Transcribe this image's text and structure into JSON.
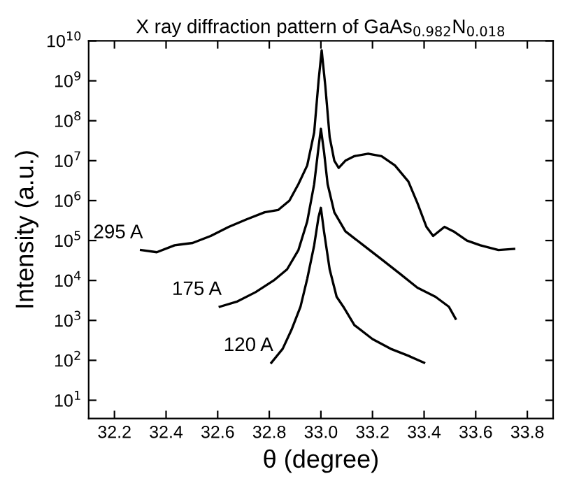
{
  "chart_data": {
    "type": "line",
    "title": "X ray diffraction pattern of GaAs$_{0.982}$N$_{0.018}$",
    "xlabel": "θ (degree)",
    "ylabel": "Intensity (a.u.)",
    "log": "y",
    "xlim": [
      32.1,
      33.9
    ],
    "ylim": [
      3.5,
      10000000000
    ],
    "xticks": [
      32.2,
      32.4,
      32.6,
      32.8,
      {
        "value": 33.0,
        "label": "33.0"
      },
      33.2,
      33.4,
      33.6,
      33.8
    ],
    "yticks": [
      {
        "value": 10,
        "label": "10$^{1}$"
      },
      {
        "value": 100,
        "label": "10$^{2}$"
      },
      {
        "value": 1000,
        "label": "10$^{3}$"
      },
      {
        "value": 10000,
        "label": "10$^{4}$"
      },
      {
        "value": 100000,
        "label": "10$^{5}$"
      },
      {
        "value": 1000000,
        "label": "10$^{6}$"
      },
      {
        "value": 10000000,
        "label": "10$^{7}$"
      },
      {
        "value": 100000000,
        "label": "10$^{8}$"
      },
      {
        "value": 1000000000,
        "label": "10$^{9}$"
      },
      {
        "value": 10000000000,
        "label": "10$^{10}$"
      }
    ],
    "grid": false,
    "legend": false,
    "marker": "none",
    "line_style": "solid",
    "series": [
      {
        "name": "295 A",
        "color": "#000000",
        "x": [
          32.303,
          32.364,
          32.433,
          32.503,
          32.573,
          32.643,
          32.712,
          32.782,
          32.834,
          32.878,
          32.913,
          32.947,
          32.974,
          32.991,
          33.003,
          33.017,
          33.034,
          33.052,
          33.069,
          33.095,
          33.13,
          33.183,
          33.235,
          33.287,
          33.339,
          33.374,
          33.409,
          33.435,
          33.479,
          33.514,
          33.566,
          33.618,
          33.688,
          33.749
        ],
        "values": [
          58000,
          51000,
          76000,
          87000,
          130000,
          220000,
          340000,
          510000,
          580000,
          1000000,
          2600000,
          7600000,
          51000000,
          1000000000,
          5800000000,
          760000000,
          39000000,
          10000000,
          6600000,
          10000000,
          13000000,
          15000000,
          13000000,
          7600000,
          3000000,
          870000,
          220000,
          130000,
          220000,
          170000,
          100000,
          76000,
          58000,
          62000
        ]
      },
      {
        "name": "175 A",
        "color": "#000000",
        "x": [
          32.608,
          32.677,
          32.747,
          32.817,
          32.869,
          32.913,
          32.947,
          32.974,
          32.991,
          33.0,
          33.012,
          33.026,
          33.052,
          33.095,
          33.165,
          33.235,
          33.305,
          33.374,
          33.444,
          33.496,
          33.522
        ],
        "values": [
          2200,
          3000,
          5100,
          10000,
          19000,
          58000,
          300000,
          2600000,
          22000000,
          63000000,
          17000000,
          2600000,
          510000,
          170000,
          76000,
          34000,
          15000,
          6600,
          3900,
          2200,
          1100
        ]
      },
      {
        "name": "120 A",
        "color": "#000000",
        "x": [
          32.808,
          32.852,
          32.886,
          32.921,
          32.947,
          32.974,
          32.991,
          33.0,
          33.012,
          33.034,
          33.061,
          33.087,
          33.13,
          33.2,
          33.27,
          33.339,
          33.4
        ],
        "values": [
          87,
          195,
          580,
          2200,
          11000,
          76000,
          390000,
          660000,
          170000,
          19000,
          3900,
          2200,
          760,
          340,
          195,
          130,
          87
        ]
      }
    ]
  }
}
